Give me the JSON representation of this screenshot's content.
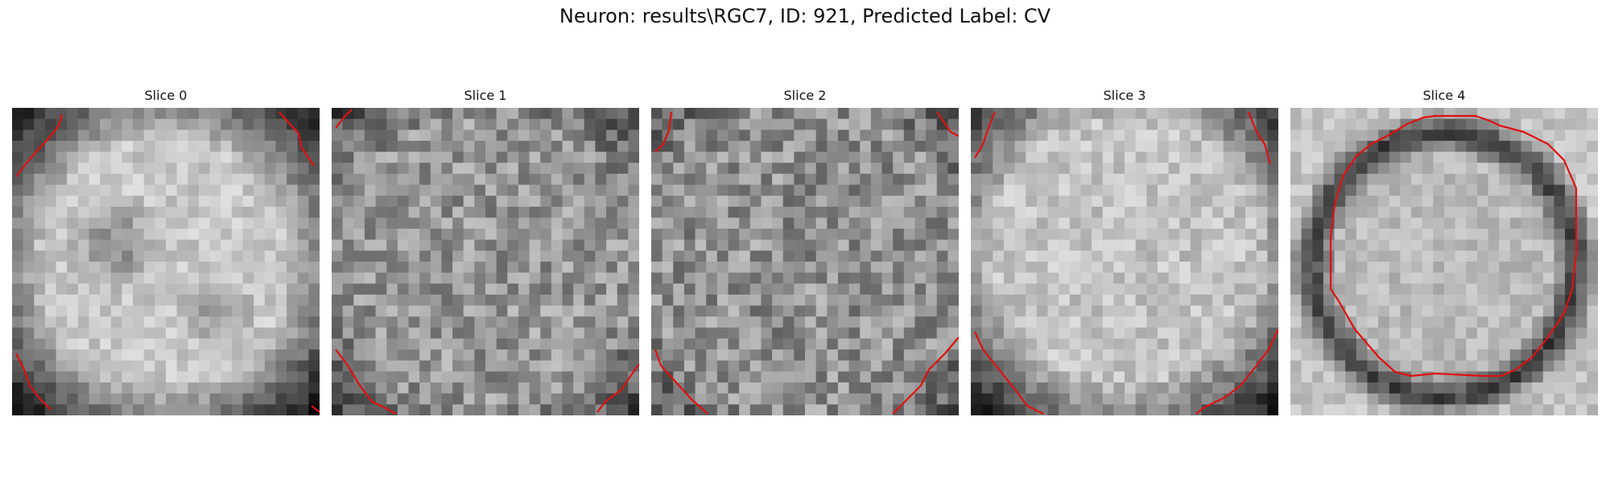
{
  "figure": {
    "title": "Neuron: results\\RGC7, ID: 921, Predicted Label: CV",
    "contour_color": "#e01010"
  },
  "panels": [
    {
      "title": "Slice 0"
    },
    {
      "title": "Slice 1"
    },
    {
      "title": "Slice 2"
    },
    {
      "title": "Slice 3"
    },
    {
      "title": "Slice 4"
    }
  ]
}
